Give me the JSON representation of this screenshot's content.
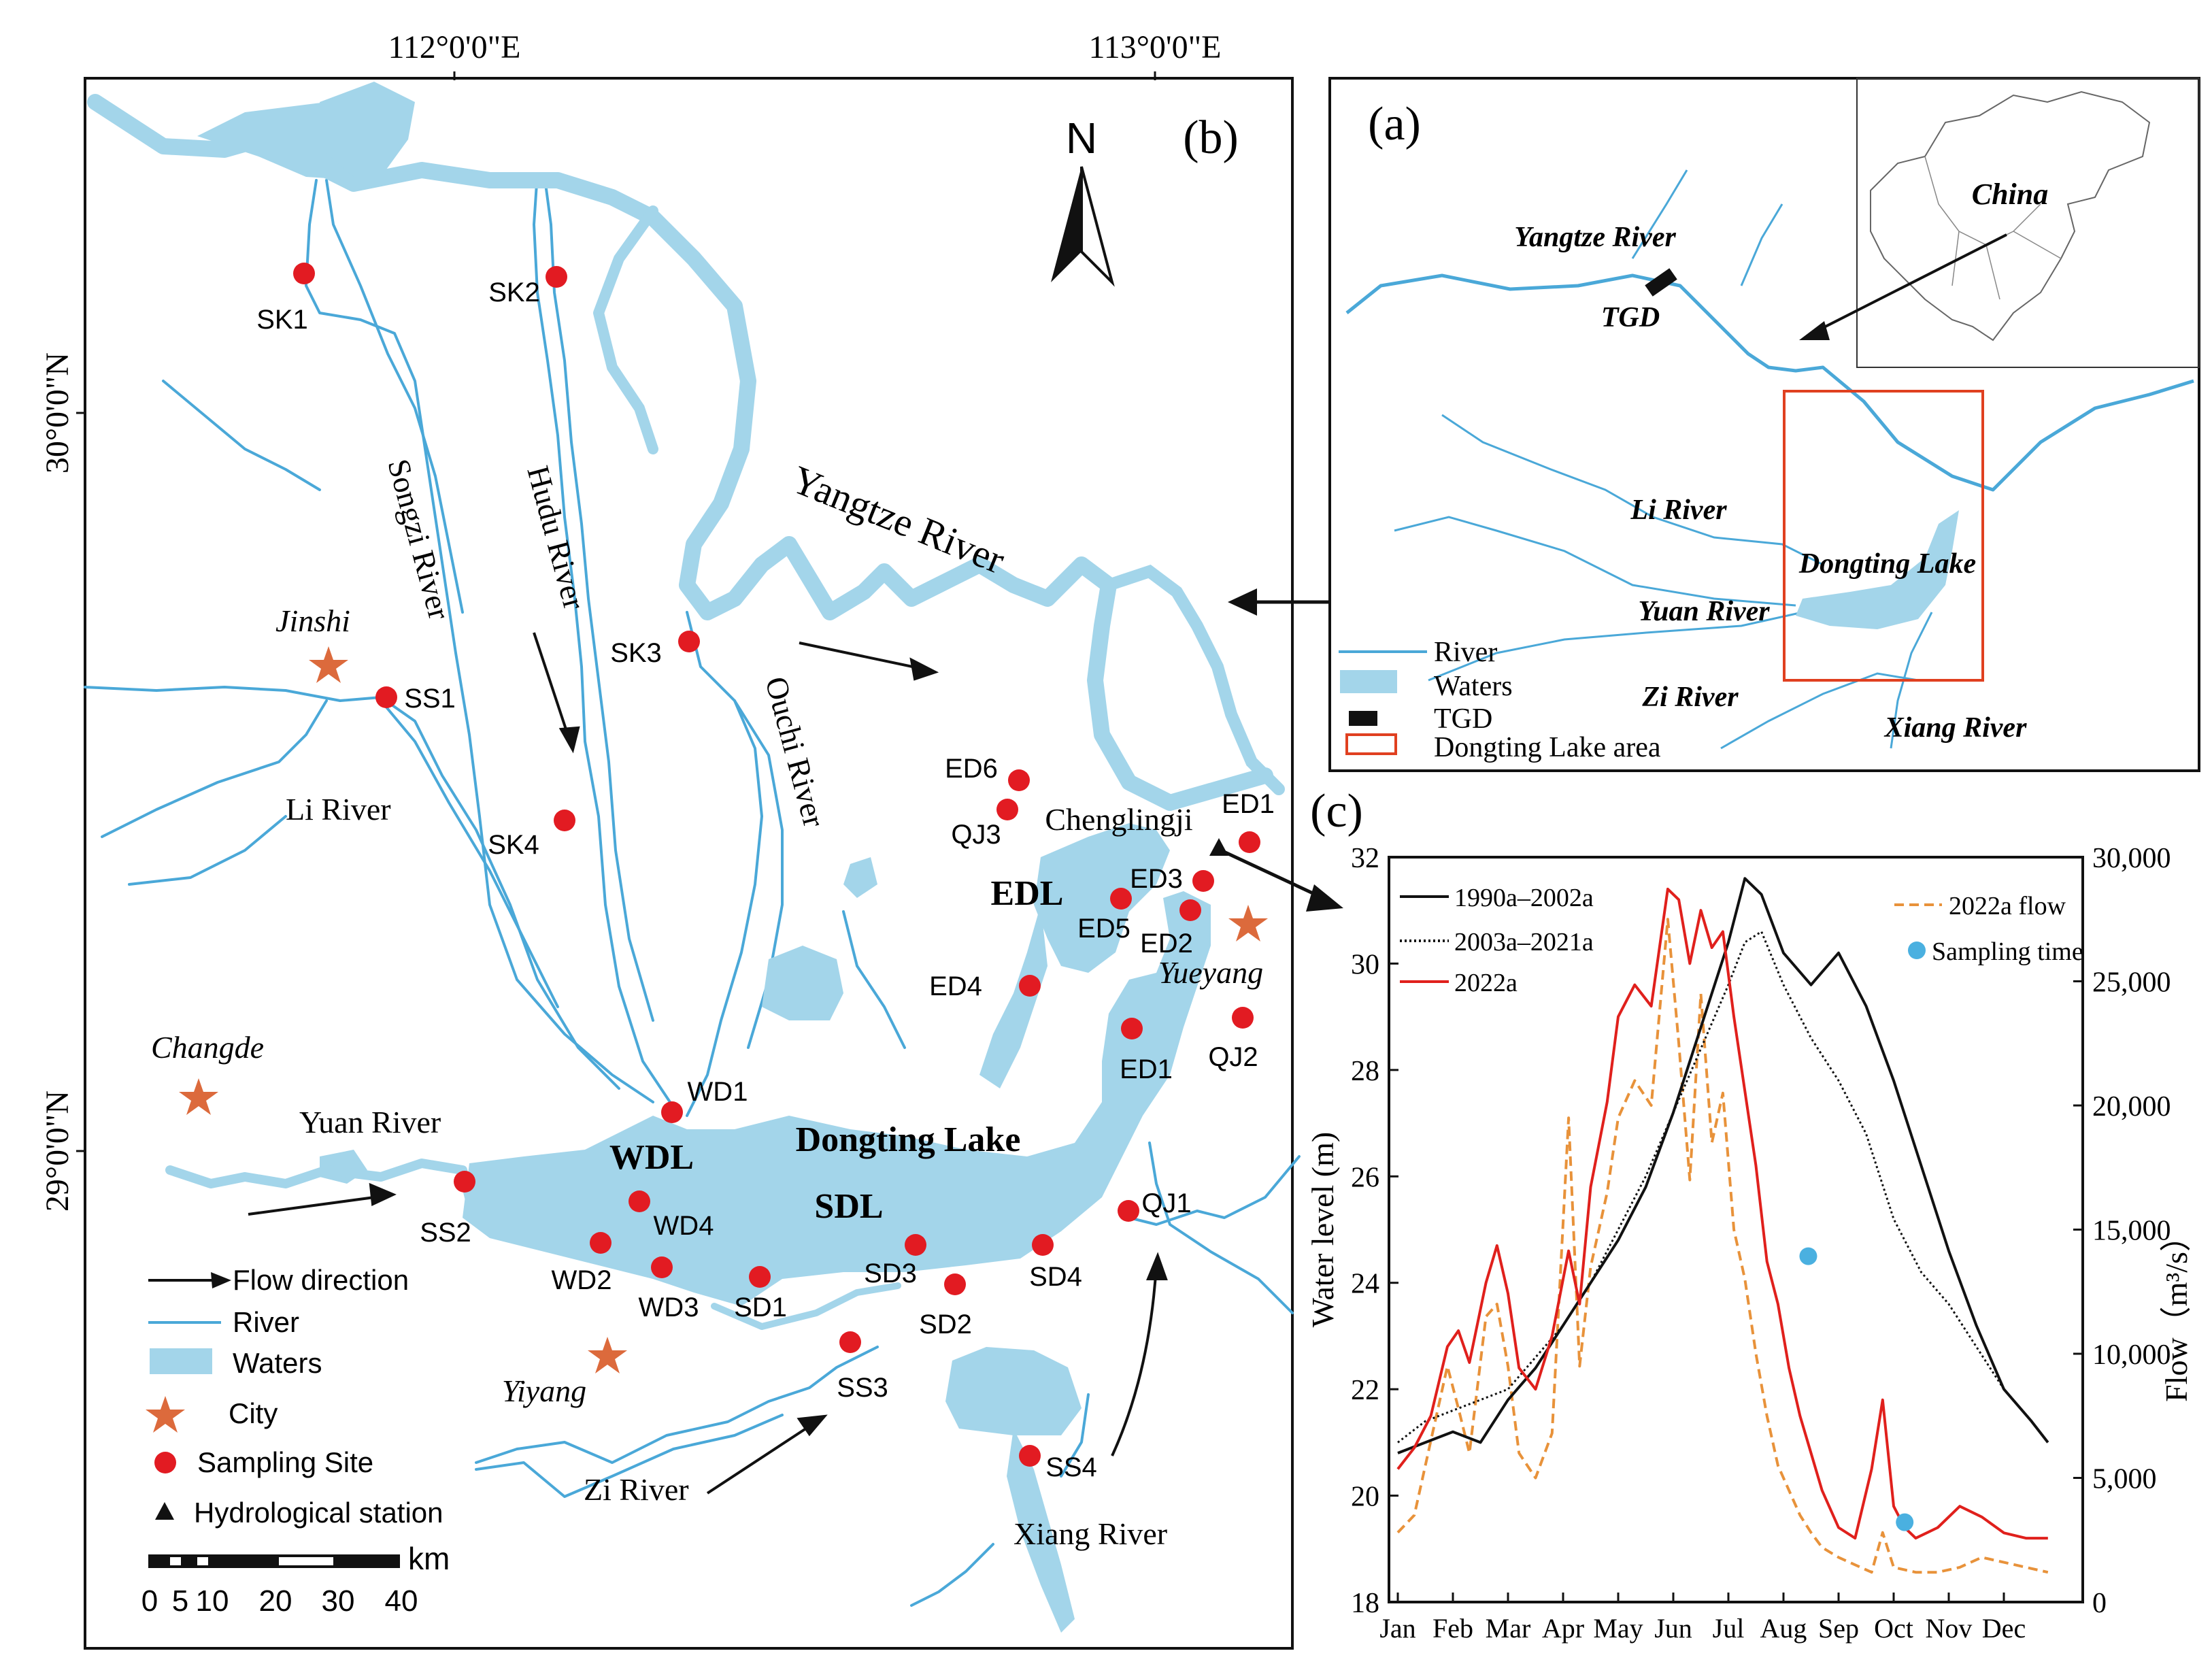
{
  "panel_b": {
    "label": "(b)",
    "north": "N",
    "lon_labels": [
      "112°0'0\"E",
      "113°0'0\"E"
    ],
    "lat_labels": [
      "30°0'0\"N",
      "29°0'0\"N"
    ],
    "rivers": {
      "yangtze": "Yangtze River",
      "songzi": "Songzi River",
      "hudu": "Hudu River",
      "ouchi": "Ouchi River",
      "li": "Li River",
      "yuan": "Yuan River",
      "zi": "Zi River",
      "xiang": "Xiang River"
    },
    "lakes": {
      "main": "Dongting Lake",
      "wdl": "WDL",
      "sdl": "SDL",
      "edl": "EDL"
    },
    "cities": {
      "jinshi": "Jinshi",
      "changde": "Changde",
      "yiyang": "Yiyang",
      "yueyang": "Yueyang"
    },
    "station": "Chenglingji",
    "sites": [
      "SK1",
      "SK2",
      "SK3",
      "SK4",
      "SS1",
      "SS2",
      "SS3",
      "SS4",
      "WD1",
      "WD2",
      "WD3",
      "WD4",
      "SD1",
      "SD2",
      "SD3",
      "SD4",
      "ED1",
      "ED1",
      "ED2",
      "ED3",
      "ED4",
      "ED5",
      "ED6",
      "QJ1",
      "QJ2",
      "QJ3"
    ],
    "legend": {
      "flow": "Flow direction",
      "river": "River",
      "waters": "Waters",
      "city": "City",
      "site": "Sampling Site",
      "station": "Hydrological station"
    },
    "scale": {
      "unit": "km",
      "ticks": [
        "0",
        "5",
        "10",
        "20",
        "30",
        "40"
      ]
    }
  },
  "panel_a": {
    "label": "(a)",
    "china": "China",
    "yangtze": "Yangtze River",
    "tgd": "TGD",
    "li": "Li River",
    "yuan": "Yuan River",
    "zi": "Zi River",
    "xiang": "Xiang River",
    "lake": "Dongting Lake",
    "legend": {
      "river": "River",
      "waters": "Waters",
      "tgd": "TGD",
      "area": "Dongting Lake area"
    }
  },
  "panel_c": {
    "label": "(c)"
  },
  "colors": {
    "water": "#a3d5ea",
    "river": "#4aa8d8",
    "site": "#e21b22",
    "city": "#dc6a3c",
    "flow2022": "#e8923a",
    "level2022": "#e0201c",
    "sampling": "#4ab0e0"
  },
  "chart_data": {
    "type": "line",
    "xlabel": "",
    "ylabel": "Water level (m)",
    "y2label": "Flow（m³/s）",
    "ylim": [
      18,
      32
    ],
    "y2lim": [
      0,
      30000
    ],
    "x_ticks": [
      "Jan",
      "Feb",
      "Mar",
      "Apr",
      "May",
      "Jun",
      "Jul",
      "Aug",
      "Sep",
      "Oct",
      "Nov",
      "Dec"
    ],
    "y_ticks": [
      "18",
      "20",
      "22",
      "24",
      "26",
      "28",
      "30",
      "32"
    ],
    "y2_ticks": [
      "0",
      "5,000",
      "10,000",
      "15,000",
      "20,000",
      "25,000",
      "30,000"
    ],
    "series": [
      {
        "name": "1990a–2002a",
        "axis": "left",
        "style": "solid",
        "color": "#111111",
        "x": [
          0,
          0.5,
          1,
          1.5,
          2,
          2.5,
          3,
          3.5,
          4,
          4.5,
          5,
          5.5,
          6,
          6.3,
          6.6,
          7,
          7.5,
          8,
          8.5,
          9,
          9.5,
          10,
          10.5,
          11,
          11.5,
          11.8
        ],
        "y": [
          20.8,
          21.0,
          21.2,
          21.0,
          21.8,
          22.4,
          23.2,
          24.0,
          24.8,
          25.8,
          27.2,
          28.8,
          30.4,
          31.6,
          31.3,
          30.2,
          29.6,
          30.2,
          29.2,
          27.8,
          26.2,
          24.6,
          23.2,
          22.0,
          21.4,
          21.0
        ]
      },
      {
        "name": "2003a–2021a",
        "axis": "left",
        "style": "dotted",
        "color": "#111111",
        "x": [
          0,
          0.5,
          1,
          1.5,
          2,
          2.5,
          3,
          3.5,
          4,
          4.5,
          5,
          5.5,
          6,
          6.3,
          6.6,
          7,
          7.5,
          8,
          8.5,
          9,
          9.5,
          10,
          10.5,
          11,
          11.5,
          11.8
        ],
        "y": [
          21.0,
          21.4,
          21.6,
          21.8,
          22.0,
          22.6,
          23.2,
          24.0,
          25.0,
          26.0,
          27.2,
          28.4,
          29.6,
          30.4,
          30.6,
          29.6,
          28.6,
          27.8,
          26.8,
          25.2,
          24.2,
          23.6,
          22.8,
          22.0,
          21.4,
          21.0
        ]
      },
      {
        "name": "2022a",
        "axis": "left",
        "style": "solid",
        "color": "#e0201c",
        "x": [
          0,
          0.3,
          0.6,
          0.9,
          1.1,
          1.3,
          1.6,
          1.8,
          2.0,
          2.2,
          2.5,
          2.8,
          3.1,
          3.3,
          3.5,
          3.8,
          4.0,
          4.3,
          4.6,
          4.9,
          5.1,
          5.3,
          5.5,
          5.7,
          5.9,
          6.1,
          6.3,
          6.5,
          6.7,
          6.9,
          7.1,
          7.3,
          7.5,
          7.7,
          8.0,
          8.3,
          8.6,
          8.8,
          9.0,
          9.2,
          9.4,
          9.6,
          9.8,
          10.2,
          10.6,
          11.0,
          11.4,
          11.8
        ],
        "y": [
          20.5,
          20.9,
          21.5,
          22.8,
          23.1,
          22.5,
          24.0,
          24.7,
          23.8,
          22.4,
          22.0,
          23.0,
          24.6,
          23.6,
          25.8,
          27.4,
          29.0,
          29.6,
          29.2,
          31.4,
          31.2,
          30.0,
          31.0,
          30.3,
          30.6,
          29.0,
          27.6,
          26.2,
          24.4,
          23.6,
          22.4,
          21.5,
          20.8,
          20.1,
          19.4,
          19.2,
          20.5,
          21.8,
          19.8,
          19.4,
          19.2,
          19.3,
          19.4,
          19.8,
          19.6,
          19.3,
          19.2,
          19.2
        ]
      },
      {
        "name": "2022a flow",
        "axis": "right",
        "style": "dashed",
        "color": "#e8923a",
        "x": [
          0,
          0.3,
          0.6,
          0.9,
          1.1,
          1.3,
          1.6,
          1.8,
          2.0,
          2.2,
          2.5,
          2.8,
          3.1,
          3.3,
          3.5,
          3.8,
          4.0,
          4.3,
          4.6,
          4.9,
          5.1,
          5.3,
          5.5,
          5.7,
          5.9,
          6.1,
          6.3,
          6.5,
          6.7,
          6.9,
          7.1,
          7.3,
          7.5,
          7.7,
          8.0,
          8.3,
          8.6,
          8.8,
          9.0,
          9.2,
          9.4,
          9.6,
          9.8,
          10.2,
          10.6,
          11.0,
          11.4,
          11.8
        ],
        "y": [
          2800,
          3500,
          6500,
          9500,
          7800,
          6000,
          11500,
          12000,
          9500,
          6000,
          5000,
          6800,
          19500,
          9500,
          13500,
          16500,
          19500,
          21000,
          20000,
          27500,
          22500,
          17000,
          24500,
          18500,
          20500,
          15000,
          13000,
          10000,
          7500,
          5500,
          4500,
          3500,
          2800,
          2200,
          1800,
          1500,
          1200,
          2800,
          1400,
          1300,
          1200,
          1200,
          1200,
          1400,
          1800,
          1600,
          1400,
          1200
        ]
      }
    ],
    "sampling_points": {
      "name": "Sampling time",
      "x": [
        7.45,
        9.2
      ],
      "y": [
        24.5,
        19.5
      ]
    }
  }
}
